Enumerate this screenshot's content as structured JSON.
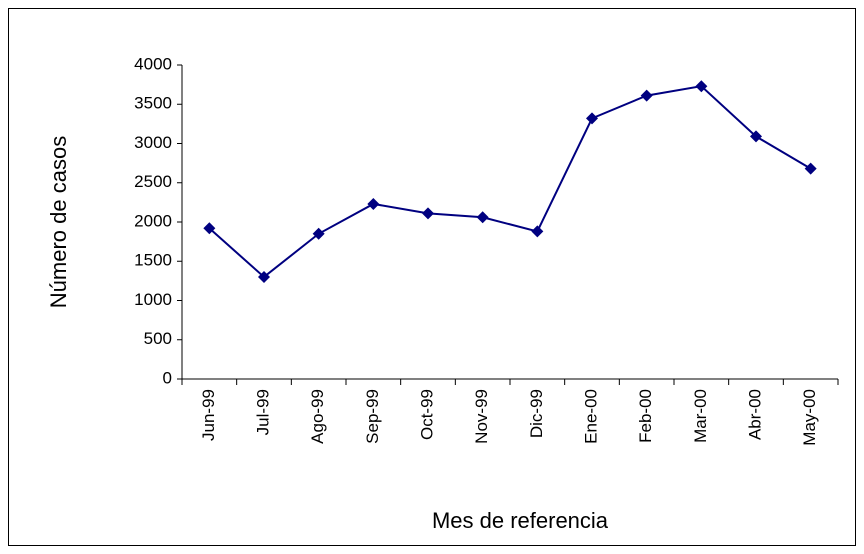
{
  "chart_data": {
    "type": "line",
    "x_label": "Mes de referencia",
    "y_label": "Número de casos",
    "categories": [
      "Jun-99",
      "Jul-99",
      "Ago-99",
      "Sep-99",
      "Oct-99",
      "Nov-99",
      "Dic-99",
      "Ene-00",
      "Feb-00",
      "Mar-00",
      "Abr-00",
      "May-00"
    ],
    "values": [
      1920,
      1300,
      1850,
      2230,
      2110,
      2060,
      1880,
      3320,
      3610,
      3730,
      3090,
      2680
    ],
    "color": "#000080",
    "ylim": [
      0,
      4000
    ],
    "yticks": [
      0,
      500,
      1000,
      1500,
      2000,
      2500,
      3000,
      3500,
      4000
    ],
    "grid": false
  }
}
